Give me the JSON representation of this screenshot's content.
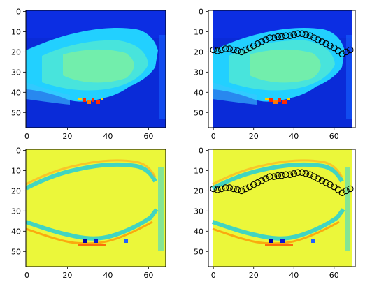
{
  "chart_data": [
    {
      "type": "heatmap",
      "colormap": "jet",
      "image": "intensity",
      "xlim": [
        -0.5,
        68.5
      ],
      "ylim": [
        57.5,
        -0.5
      ],
      "xticks": [
        0,
        20,
        40,
        60
      ],
      "yticks": [
        0,
        10,
        20,
        30,
        40,
        50
      ],
      "overlay": null
    },
    {
      "type": "heatmap",
      "colormap": "jet",
      "image": "intensity",
      "xlim": [
        -2.5,
        70.5
      ],
      "ylim": [
        57.5,
        -0.5
      ],
      "xticks": [
        0,
        20,
        40,
        60
      ],
      "yticks": [
        0,
        10,
        20,
        30,
        40,
        50
      ],
      "overlay": "contour_points"
    },
    {
      "type": "heatmap",
      "colormap": "jet",
      "image": "edge_response",
      "xlim": [
        -0.5,
        68.5
      ],
      "ylim": [
        57.5,
        -0.5
      ],
      "xticks": [
        0,
        20,
        40,
        60
      ],
      "yticks": [
        0,
        10,
        20,
        30,
        40,
        50
      ],
      "overlay": null
    },
    {
      "type": "heatmap",
      "colormap": "jet",
      "image": "edge_response",
      "xlim": [
        -2.5,
        70.5
      ],
      "ylim": [
        57.5,
        -0.5
      ],
      "xticks": [
        0,
        20,
        40,
        60
      ],
      "yticks": [
        0,
        10,
        20,
        30,
        40,
        50
      ],
      "overlay": "contour_points"
    }
  ],
  "contour_points": {
    "x": [
      0,
      2,
      4,
      6,
      8,
      10,
      12,
      14,
      16,
      18,
      20,
      22,
      24,
      26,
      28,
      30,
      32,
      34,
      36,
      38,
      40,
      42,
      44,
      46,
      48,
      50,
      52,
      54,
      56,
      58,
      60,
      62,
      64,
      66,
      68
    ],
    "y": [
      19,
      19.5,
      19,
      18.5,
      18.5,
      19,
      19.5,
      20,
      19,
      18,
      17,
      16,
      15,
      14,
      13,
      13,
      12.5,
      12.5,
      12,
      12,
      11.5,
      11,
      11,
      11.5,
      12,
      13,
      14,
      15,
      16,
      17,
      18,
      19.5,
      21,
      20,
      19
    ]
  },
  "colors": {
    "marker_edge": "#000000",
    "axes_frame": "#000000"
  }
}
